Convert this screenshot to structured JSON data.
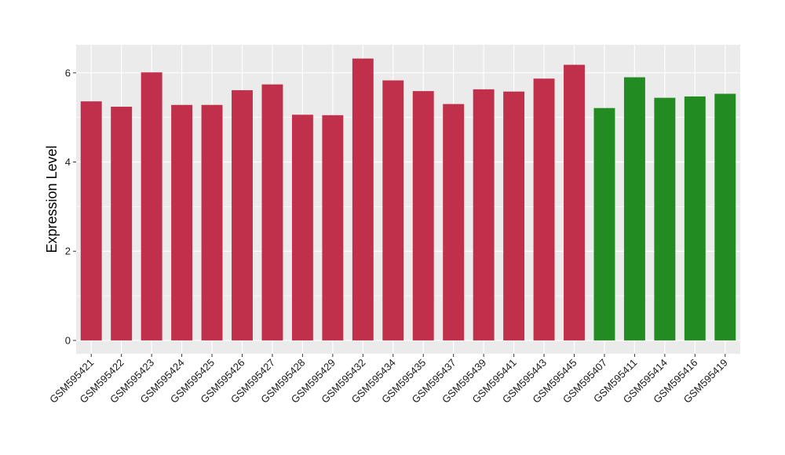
{
  "chart_data": {
    "type": "bar",
    "categories": [
      "GSM595421",
      "GSM595422",
      "GSM595423",
      "GSM595424",
      "GSM595425",
      "GSM595426",
      "GSM595427",
      "GSM595428",
      "GSM595429",
      "GSM595432",
      "GSM595434",
      "GSM595435",
      "GSM595437",
      "GSM595439",
      "GSM595441",
      "GSM595443",
      "GSM595445",
      "GSM595407",
      "GSM595411",
      "GSM595414",
      "GSM595416",
      "GSM595419"
    ],
    "values": [
      5.36,
      5.24,
      6.01,
      5.28,
      5.28,
      5.61,
      5.74,
      5.06,
      5.05,
      6.32,
      5.83,
      5.59,
      5.3,
      5.63,
      5.58,
      5.87,
      6.18,
      5.21,
      5.9,
      5.44,
      5.47,
      5.53
    ],
    "groups": [
      "red",
      "red",
      "red",
      "red",
      "red",
      "red",
      "red",
      "red",
      "red",
      "red",
      "red",
      "red",
      "red",
      "red",
      "red",
      "red",
      "red",
      "green",
      "green",
      "green",
      "green",
      "green"
    ],
    "group_colors": {
      "red": "#c0304a",
      "green": "#228b22"
    },
    "title": "",
    "xlabel": "",
    "ylabel": "Expression Level",
    "ylim": [
      -0.3,
      6.63
    ],
    "yticks": [
      0,
      2,
      4,
      6
    ],
    "ytick_labels": [
      "0",
      "2",
      "4",
      "6"
    ],
    "grid": true,
    "legend": "none",
    "panel_color": "#ebebeb",
    "grid_color": "#ffffff"
  }
}
